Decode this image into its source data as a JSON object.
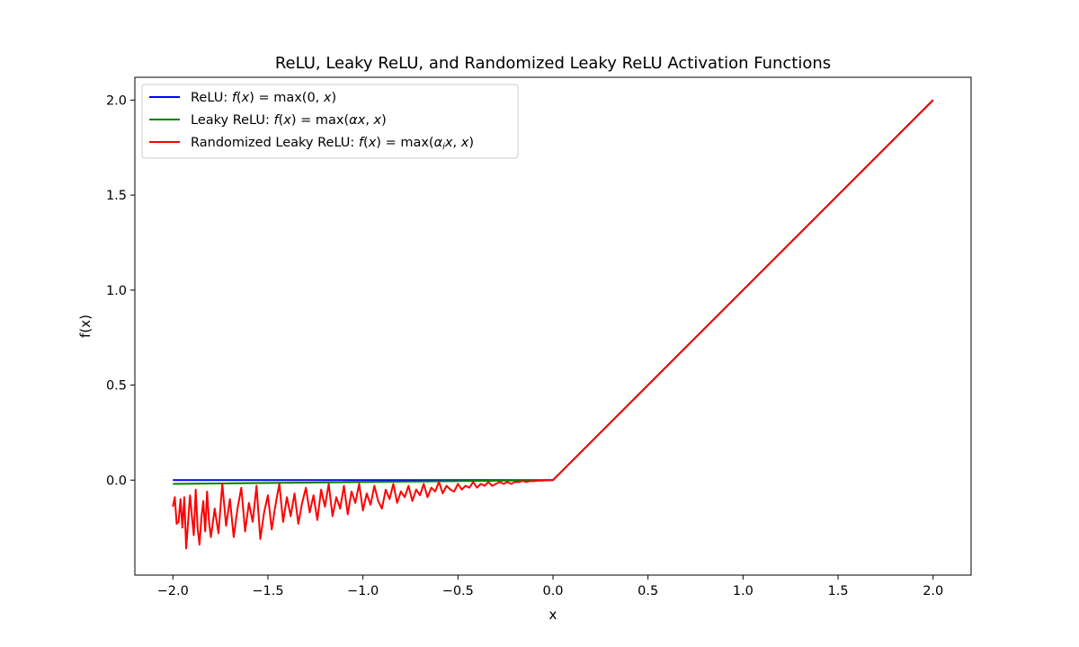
{
  "chart_data": {
    "type": "line",
    "title": "ReLU, Leaky ReLU, and Randomized Leaky ReLU Activation Functions",
    "xlabel": "x",
    "ylabel": "f(x)",
    "xlim": [
      -2.2,
      2.2
    ],
    "ylim": [
      -0.5,
      2.12
    ],
    "xticks": [
      -2.0,
      -1.5,
      -1.0,
      -0.5,
      0.0,
      0.5,
      1.0,
      1.5,
      2.0
    ],
    "xtick_labels": [
      "−2.0",
      "−1.5",
      "−1.0",
      "−0.5",
      "0.0",
      "0.5",
      "1.0",
      "1.5",
      "2.0"
    ],
    "yticks": [
      0.0,
      0.5,
      1.0,
      1.5,
      2.0
    ],
    "ytick_labels": [
      "0.0",
      "0.5",
      "1.0",
      "1.5",
      "2.0"
    ],
    "legend_position": "upper-left",
    "grid": false,
    "series": [
      {
        "name": "ReLU: f(x) = max(0, x)",
        "color": "#0000ff",
        "x": [
          -2.0,
          0.0,
          2.0
        ],
        "y": [
          0.0,
          0.0,
          2.0
        ]
      },
      {
        "name": "Leaky ReLU: f(x) = max(αx, x)",
        "color": "#008000",
        "x": [
          -2.0,
          0.0,
          2.0
        ],
        "y": [
          -0.02,
          0.0,
          2.0
        ]
      },
      {
        "name": "Randomized Leaky ReLU: f(x) = max(αᵢx, x)",
        "color": "#ff0000",
        "x": [
          -2.0,
          -1.99,
          -1.98,
          -1.97,
          -1.96,
          -1.95,
          -1.94,
          -1.93,
          -1.92,
          -1.91,
          -1.9,
          -1.89,
          -1.88,
          -1.87,
          -1.86,
          -1.85,
          -1.84,
          -1.83,
          -1.82,
          -1.81,
          -1.8,
          -1.78,
          -1.76,
          -1.74,
          -1.72,
          -1.7,
          -1.68,
          -1.66,
          -1.64,
          -1.62,
          -1.6,
          -1.58,
          -1.56,
          -1.54,
          -1.52,
          -1.5,
          -1.48,
          -1.46,
          -1.44,
          -1.42,
          -1.4,
          -1.38,
          -1.36,
          -1.34,
          -1.32,
          -1.3,
          -1.28,
          -1.26,
          -1.24,
          -1.22,
          -1.2,
          -1.18,
          -1.16,
          -1.14,
          -1.12,
          -1.1,
          -1.08,
          -1.06,
          -1.04,
          -1.02,
          -1.0,
          -0.98,
          -0.96,
          -0.94,
          -0.92,
          -0.9,
          -0.88,
          -0.86,
          -0.84,
          -0.82,
          -0.8,
          -0.78,
          -0.76,
          -0.74,
          -0.72,
          -0.7,
          -0.68,
          -0.66,
          -0.64,
          -0.62,
          -0.6,
          -0.58,
          -0.56,
          -0.54,
          -0.52,
          -0.5,
          -0.48,
          -0.46,
          -0.44,
          -0.42,
          -0.4,
          -0.38,
          -0.36,
          -0.34,
          -0.32,
          -0.3,
          -0.28,
          -0.26,
          -0.24,
          -0.22,
          -0.2,
          -0.18,
          -0.16,
          -0.14,
          -0.12,
          -0.1,
          -0.08,
          -0.06,
          -0.04,
          -0.02,
          0.0,
          2.0
        ],
        "y": [
          -0.14,
          -0.09,
          -0.23,
          -0.22,
          -0.1,
          -0.25,
          -0.09,
          -0.36,
          -0.22,
          -0.08,
          -0.19,
          -0.29,
          -0.05,
          -0.25,
          -0.34,
          -0.2,
          -0.11,
          -0.27,
          -0.06,
          -0.22,
          -0.3,
          -0.15,
          -0.28,
          -0.02,
          -0.24,
          -0.1,
          -0.3,
          -0.15,
          -0.04,
          -0.27,
          -0.12,
          -0.22,
          -0.03,
          -0.31,
          -0.17,
          -0.08,
          -0.26,
          -0.13,
          -0.02,
          -0.22,
          -0.09,
          -0.19,
          -0.07,
          -0.23,
          -0.12,
          -0.04,
          -0.17,
          -0.08,
          -0.21,
          -0.05,
          -0.14,
          -0.02,
          -0.19,
          -0.09,
          -0.15,
          -0.03,
          -0.18,
          -0.06,
          -0.12,
          -0.02,
          -0.16,
          -0.07,
          -0.13,
          -0.03,
          -0.11,
          -0.15,
          -0.05,
          -0.1,
          -0.02,
          -0.12,
          -0.06,
          -0.09,
          -0.03,
          -0.11,
          -0.05,
          -0.08,
          -0.02,
          -0.09,
          -0.04,
          -0.06,
          -0.01,
          -0.07,
          -0.03,
          -0.05,
          -0.06,
          -0.02,
          -0.05,
          -0.03,
          -0.04,
          -0.01,
          -0.04,
          -0.02,
          -0.03,
          -0.01,
          -0.03,
          -0.02,
          -0.01,
          -0.02,
          -0.01,
          -0.02,
          -0.01,
          -0.01,
          -0.005,
          -0.01,
          -0.005,
          -0.005,
          -0.003,
          -0.003,
          -0.001,
          -0.001,
          0.0,
          2.0
        ]
      }
    ]
  },
  "legend": [
    {
      "prefix": "ReLU: ",
      "f": "f",
      "open": "(",
      "x": "x",
      "mid": ") = max(0, ",
      "arg": "x",
      "close": ")"
    },
    {
      "prefix": "Leaky ReLU: ",
      "f": "f",
      "open": "(",
      "x": "x",
      "mid": ") = max(",
      "arg": "αx",
      "sep": ", ",
      "arg2": "x",
      "close": ")"
    },
    {
      "prefix": "Randomized Leaky ReLU: ",
      "f": "f",
      "open": "(",
      "x": "x",
      "mid": ") = max(",
      "arg": "α",
      "sub": "i",
      "argx": "x",
      "sep": ", ",
      "arg2": "x",
      "close": ")"
    }
  ]
}
